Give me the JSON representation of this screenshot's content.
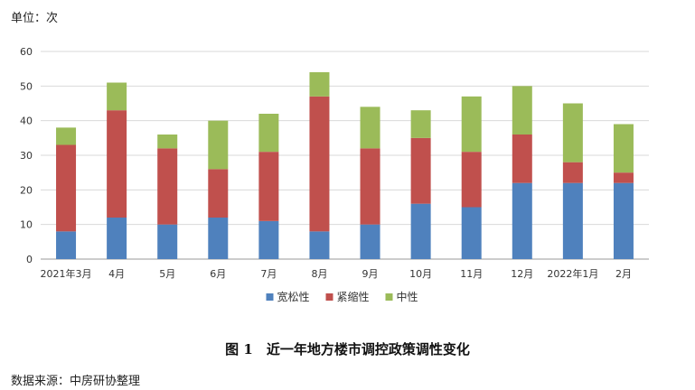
{
  "unit_label": "单位：次",
  "caption": "图 1　近一年地方楼市调控政策调性变化",
  "source": "数据来源：中房研协整理",
  "colors": {
    "宽松性": "#4f81bd",
    "紧缩性": "#c0504d",
    "中性": "#9bbb59",
    "grid": "#d9d9d9",
    "axis": "#999999"
  },
  "chart_data": {
    "type": "bar",
    "stacked": true,
    "categories": [
      "2021年3月",
      "4月",
      "5月",
      "6月",
      "7月",
      "8月",
      "9月",
      "10月",
      "11月",
      "12月",
      "2022年1月",
      "2月"
    ],
    "series": [
      {
        "name": "宽松性",
        "values": [
          8,
          12,
          10,
          12,
          11,
          8,
          10,
          16,
          15,
          22,
          22,
          22
        ]
      },
      {
        "name": "紧缩性",
        "values": [
          25,
          31,
          22,
          14,
          20,
          39,
          22,
          19,
          16,
          14,
          6,
          3
        ]
      },
      {
        "name": "中性",
        "values": [
          5,
          8,
          4,
          14,
          11,
          7,
          12,
          8,
          16,
          14,
          17,
          14
        ]
      }
    ],
    "ylim": [
      0,
      60
    ],
    "yticks": [
      0,
      10,
      20,
      30,
      40,
      50,
      60
    ],
    "grid": true,
    "legend": "bottom"
  }
}
